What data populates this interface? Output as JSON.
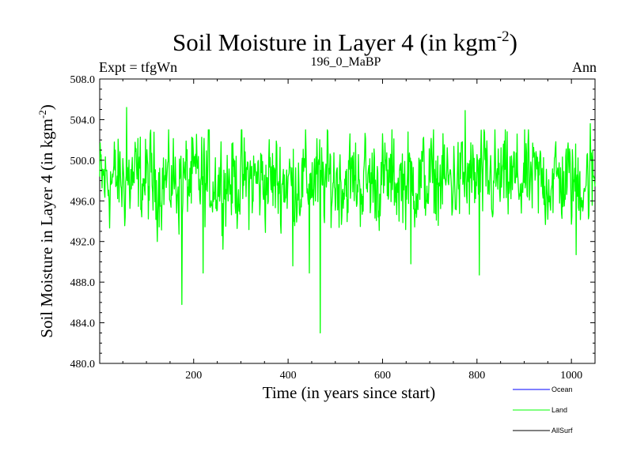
{
  "header": {
    "title_main": "Soil Moisture in Layer 4 (in kgm",
    "title_sup": "-2",
    "title_close": ")",
    "left_label": "Expt = tfgWn",
    "center_label": "196_0_MaBP",
    "right_label": "Ann"
  },
  "axes": {
    "xlabel": "Time (in years since start)",
    "ylabel_main": "Soil Moisture in Layer 4 (in kgm",
    "ylabel_sup": "-2",
    "ylabel_close": ")"
  },
  "legend": [
    {
      "name": "Ocean",
      "color": "#0000ff"
    },
    {
      "name": "Land",
      "color": "#00ff00"
    },
    {
      "name": "AllSurf",
      "color": "#000000"
    }
  ],
  "chart_data": {
    "type": "line",
    "xlim": [
      1,
      1050
    ],
    "ylim": [
      480.0,
      508.0
    ],
    "xticks": [
      200,
      400,
      600,
      800,
      1000
    ],
    "yticks": [
      "480.0",
      "484.0",
      "488.0",
      "492.0",
      "496.0",
      "500.0",
      "504.0",
      "508.0"
    ],
    "grid": false,
    "legend_position": "bottom-right, below plot",
    "series": [
      {
        "name": "Land",
        "color": "#00ff00",
        "sampling": "annual values, approximated from the plotted trace",
        "x_start": 1,
        "x_step": 1,
        "n_points": 1050,
        "mean": 498.0,
        "typical_range": [
          491.0,
          503.0
        ],
        "extremes": [
          {
            "x": 58,
            "y": 505.2
          },
          {
            "x": 175,
            "y": 485.8
          },
          {
            "x": 220,
            "y": 488.9
          },
          {
            "x": 410,
            "y": 489.6
          },
          {
            "x": 445,
            "y": 488.9
          },
          {
            "x": 468,
            "y": 483.0
          },
          {
            "x": 660,
            "y": 489.8
          },
          {
            "x": 775,
            "y": 504.9
          },
          {
            "x": 805,
            "y": 488.7
          },
          {
            "x": 1010,
            "y": 490.7
          },
          {
            "x": 1040,
            "y": 503.6
          }
        ]
      },
      {
        "name": "Ocean",
        "color": "#0000ff",
        "values": []
      },
      {
        "name": "AllSurf",
        "color": "#000000",
        "values": []
      }
    ]
  }
}
